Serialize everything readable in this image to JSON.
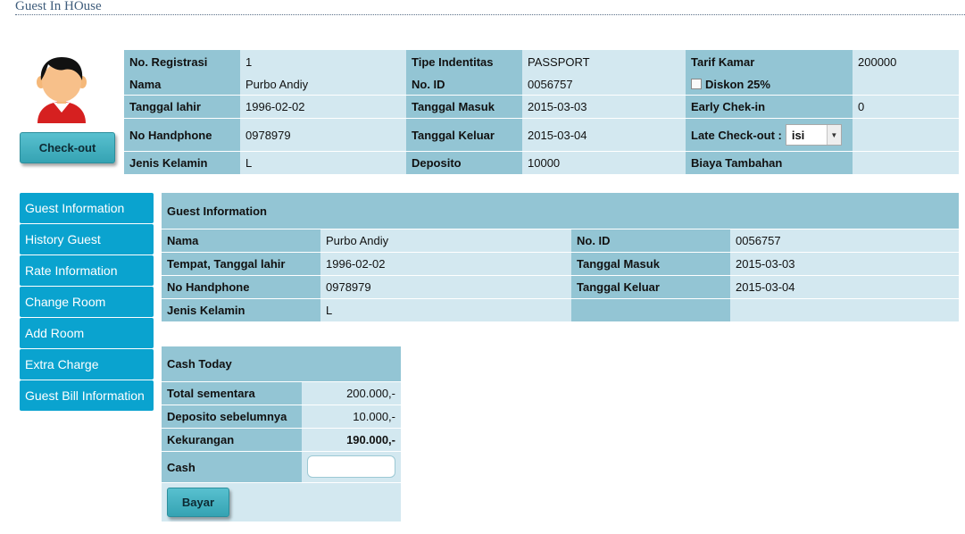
{
  "page_title": "Guest In HOuse",
  "checkout_button": "Check-out",
  "top_info": {
    "no_registrasi_label": "No. Registrasi",
    "no_registrasi_value": "1",
    "nama_label": "Nama",
    "nama_value": "Purbo Andiy",
    "tanggal_lahir_label": "Tanggal lahir",
    "tanggal_lahir_value": "1996-02-02",
    "no_handphone_label": "No Handphone",
    "no_handphone_value": "0978979",
    "jenis_kelamin_label": "Jenis Kelamin",
    "jenis_kelamin_value": "L",
    "tipe_identitas_label": "Tipe Indentitas",
    "tipe_identitas_value": "PASSPORT",
    "no_id_label": "No. ID",
    "no_id_value": "0056757",
    "tanggal_masuk_label": "Tanggal Masuk",
    "tanggal_masuk_value": "2015-03-03",
    "tanggal_keluar_label": "Tanggal Keluar",
    "tanggal_keluar_value": "2015-03-04",
    "deposito_label": "Deposito",
    "deposito_value": "10000",
    "tarif_kamar_label": "Tarif Kamar",
    "tarif_kamar_value": "200000",
    "diskon_label": "Diskon 25%",
    "diskon_checked": false,
    "early_checkin_label": "Early Chek-in",
    "early_checkin_value": "0",
    "late_checkout_label": "Late Check-out :",
    "late_checkout_selected": "isi",
    "biaya_tambahan_label": "Biaya Tambahan"
  },
  "sidebar": {
    "items": [
      {
        "label": "Guest Information"
      },
      {
        "label": "History Guest"
      },
      {
        "label": "Rate Information"
      },
      {
        "label": "Change Room"
      },
      {
        "label": "Add Room"
      },
      {
        "label": "Extra Charge"
      },
      {
        "label": "Guest Bill Information"
      }
    ]
  },
  "guest_info": {
    "title": "Guest Information",
    "nama_label": "Nama",
    "nama_value": "Purbo Andiy",
    "ttl_label": "Tempat, Tanggal lahir",
    "ttl_value": "1996-02-02",
    "hp_label": "No Handphone",
    "hp_value": "0978979",
    "jk_label": "Jenis Kelamin",
    "jk_value": "L",
    "no_id_label": "No. ID",
    "no_id_value": "0056757",
    "masuk_label": "Tanggal Masuk",
    "masuk_value": "2015-03-03",
    "keluar_label": "Tanggal Keluar",
    "keluar_value": "2015-03-04"
  },
  "cash_today": {
    "title": "Cash Today",
    "total_label": "Total sementara",
    "total_value": "200.000,-",
    "deposito_label": "Deposito sebelumnya",
    "deposito_value": "10.000,-",
    "kekurangan_label": "Kekurangan",
    "kekurangan_value": "190.000,-",
    "cash_label": "Cash",
    "cash_value": "",
    "bayar_button": "Bayar"
  },
  "colors": {
    "label_bg": "#93c5d4",
    "value_bg": "#d3e8f0",
    "sidebar_bg": "#0aa3cf",
    "button_bg": "#35a3b3",
    "title_color": "#3f5d7c"
  }
}
